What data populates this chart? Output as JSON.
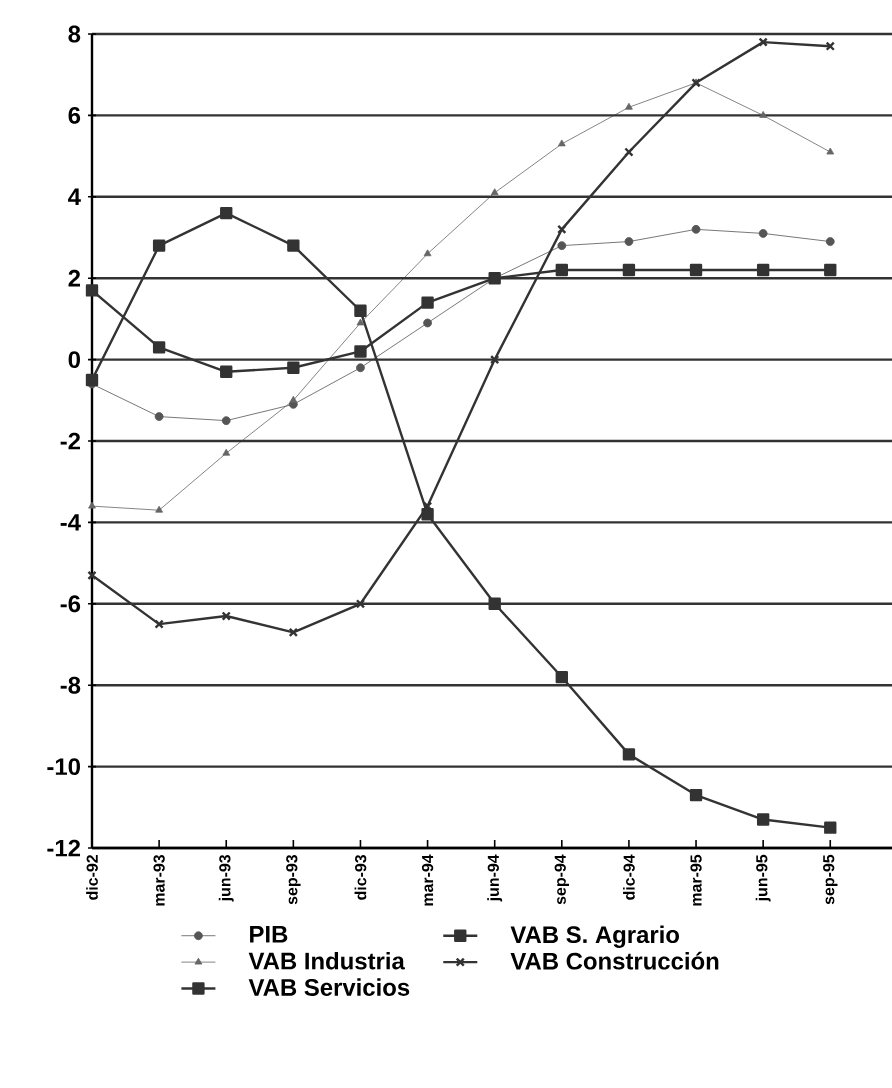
{
  "chart_data": {
    "type": "line",
    "categories": [
      "dic-92",
      "mar-93",
      "jun-93",
      "sep-93",
      "dic-93",
      "mar-94",
      "jun-94",
      "sep-94",
      "dic-94",
      "mar-95",
      "jun-95",
      "sep-95"
    ],
    "series": [
      {
        "name": "PIB",
        "color": "#555555",
        "marker": "circle",
        "values": [
          -0.6,
          -1.4,
          -1.5,
          -1.1,
          -0.2,
          0.9,
          2.0,
          2.8,
          2.9,
          3.2,
          3.1,
          2.9
        ]
      },
      {
        "name": "VAB S. Agrario",
        "color": "#333333",
        "marker": "square",
        "values": [
          -0.5,
          2.8,
          3.6,
          2.8,
          1.2,
          -3.8,
          -6.0,
          -7.8,
          -9.7,
          -10.7,
          -11.3,
          -11.5
        ]
      },
      {
        "name": "VAB Industria",
        "color": "#666666",
        "marker": "triangle",
        "values": [
          -3.6,
          -3.7,
          -2.3,
          -1.0,
          0.9,
          2.6,
          4.1,
          5.3,
          6.2,
          6.8,
          6.0,
          5.1
        ]
      },
      {
        "name": "VAB Construcción",
        "color": "#333333",
        "marker": "cross",
        "values": [
          -5.3,
          -6.5,
          -6.3,
          -6.7,
          -6.0,
          -3.6,
          0.0,
          3.2,
          5.1,
          6.8,
          7.8,
          7.7
        ]
      },
      {
        "name": "VAB Servicios",
        "color": "#333333",
        "marker": "square",
        "values": [
          1.7,
          0.3,
          -0.3,
          -0.2,
          0.2,
          1.4,
          2.0,
          2.2,
          2.2,
          2.2,
          2.2,
          2.2
        ]
      }
    ],
    "ylim": [
      -12,
      8
    ],
    "yticks": [
      -12,
      -10,
      -8,
      -6,
      -4,
      -2,
      0,
      2,
      4,
      6,
      8
    ],
    "grid": "y",
    "legend": "bottom"
  }
}
